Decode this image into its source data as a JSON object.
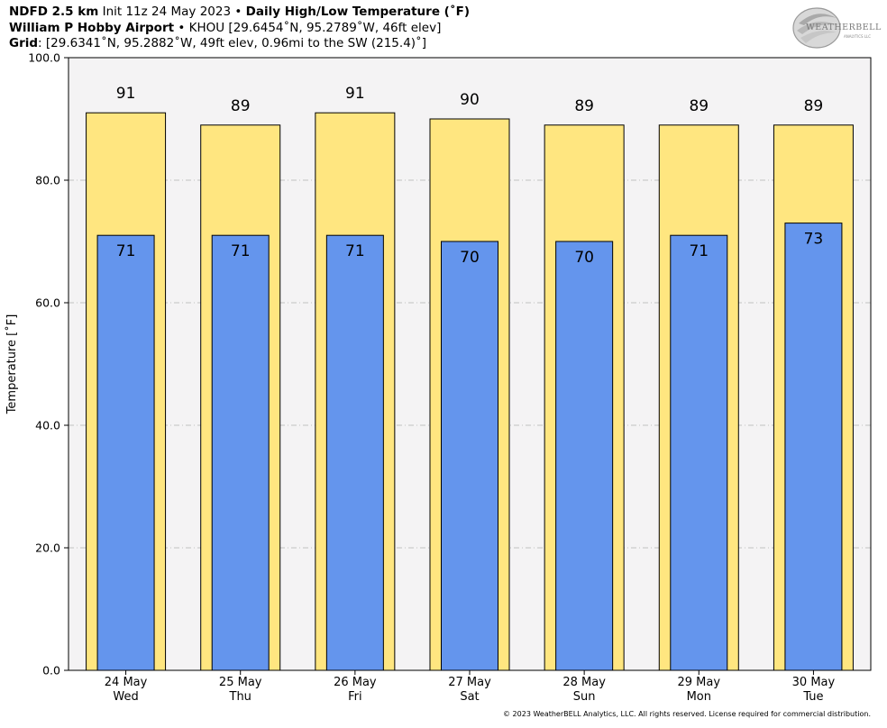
{
  "header": {
    "line1_model": "NDFD 2.5 km",
    "line1_init": "Init 11z 24 May 2023",
    "line1_sep": "•",
    "line1_title": "Daily High/Low Temperature (˚F)",
    "line2_station": "William P Hobby Airport",
    "line2_sep": "•",
    "line2_info": "KHOU [29.6454˚N, 95.2789˚W, 46ft elev]",
    "line3_label": "Grid",
    "line3_info": ": [29.6341˚N, 95.2882˚W, 49ft elev, 0.96mi to the SW (215.4)˚]"
  },
  "logo": {
    "text": "WEATHERBELL",
    "sub": "ANALYTICS LLC",
    "icon": "weatherbell-swirl-logo"
  },
  "footer": {
    "copyright": "© 2023 WeatherBELL Analytics, LLC. All rights reserved. License required for commercial distribution."
  },
  "colors": {
    "high": "#FFE680",
    "low": "#6495ED",
    "plot_bg": "#F4F3F4"
  },
  "chart_data": {
    "type": "bar",
    "ylabel": "Temperature [˚F]",
    "ylim": [
      0,
      100
    ],
    "yticks": [
      "0.0",
      "20.0",
      "40.0",
      "60.0",
      "80.0",
      "100.0"
    ],
    "ytick_values": [
      0,
      20,
      40,
      60,
      80,
      100
    ],
    "grid": true,
    "categories": [
      {
        "date": "24 May",
        "day": "Wed"
      },
      {
        "date": "25 May",
        "day": "Thu"
      },
      {
        "date": "26 May",
        "day": "Fri"
      },
      {
        "date": "27 May",
        "day": "Sat"
      },
      {
        "date": "28 May",
        "day": "Sun"
      },
      {
        "date": "29 May",
        "day": "Mon"
      },
      {
        "date": "30 May",
        "day": "Tue"
      }
    ],
    "series": [
      {
        "values": [
          91,
          89,
          91,
          90,
          89,
          89,
          89
        ]
      },
      {
        "values": [
          71,
          71,
          71,
          70,
          70,
          71,
          73
        ]
      }
    ]
  }
}
